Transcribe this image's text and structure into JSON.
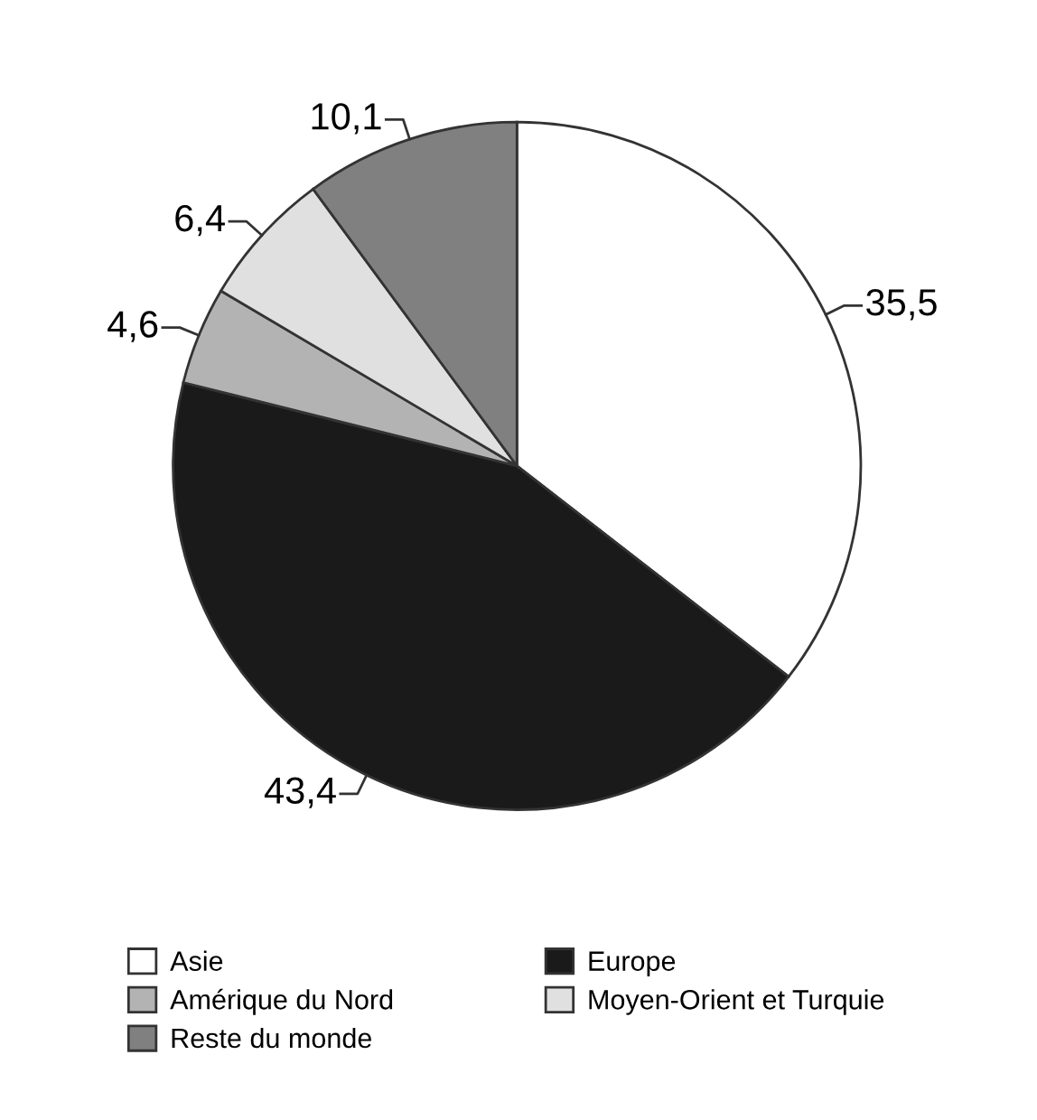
{
  "chart_data": {
    "type": "pie",
    "categories": [
      "Asie",
      "Europe",
      "Amérique du Nord",
      "Moyen-Orient et Turquie",
      "Reste du monde"
    ],
    "values": [
      35.5,
      43.4,
      4.6,
      6.4,
      10.1
    ],
    "value_labels": [
      "35,5",
      "43,4",
      "4,6",
      "6,4",
      "10,1"
    ],
    "colors": [
      "#ffffff",
      "#1a1a1a",
      "#b3b3b3",
      "#e0e0e0",
      "#808080"
    ],
    "legend": "bottom"
  }
}
